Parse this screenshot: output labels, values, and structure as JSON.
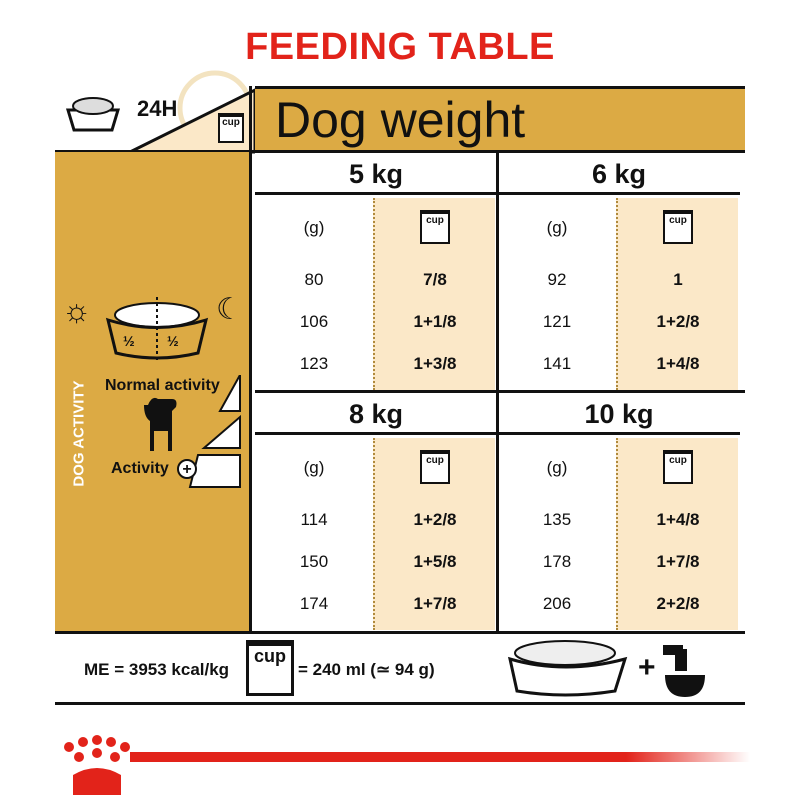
{
  "title": "FEEDING TABLE",
  "top_left": {
    "time_label": "24H",
    "cup_label": "cup"
  },
  "header": {
    "label": "Dog weight"
  },
  "left_panel": {
    "half_left": "½",
    "half_right": "½",
    "dog_activity_label": "DOG ACTIVITY",
    "normal_activity": "Normal activity",
    "activity": "Activity"
  },
  "blocks": [
    {
      "weight": "5 kg",
      "g_header": "(g)",
      "cup_label": "cup",
      "grams": [
        "80",
        "106",
        "123"
      ],
      "cups": [
        "7/8",
        "1+1/8",
        "1+3/8"
      ]
    },
    {
      "weight": "6 kg",
      "g_header": "(g)",
      "cup_label": "cup",
      "grams": [
        "92",
        "121",
        "141"
      ],
      "cups": [
        "1",
        "1+2/8",
        "1+4/8"
      ]
    },
    {
      "weight": "8 kg",
      "g_header": "(g)",
      "cup_label": "cup",
      "grams": [
        "114",
        "150",
        "174"
      ],
      "cups": [
        "1+2/8",
        "1+5/8",
        "1+7/8"
      ]
    },
    {
      "weight": "10 kg",
      "g_header": "(g)",
      "cup_label": "cup",
      "grams": [
        "135",
        "178",
        "206"
      ],
      "cups": [
        "1+4/8",
        "1+7/8",
        "2+2/8"
      ]
    }
  ],
  "footer": {
    "energy": "ME = 3953 kcal/kg",
    "cup_label": "cup",
    "cup_equiv": "= 240 ml (≃ 94 g)",
    "plus": "+"
  },
  "colors": {
    "gold": "#dcaa44",
    "cream": "#fbe8c8",
    "red": "#e2231a"
  }
}
